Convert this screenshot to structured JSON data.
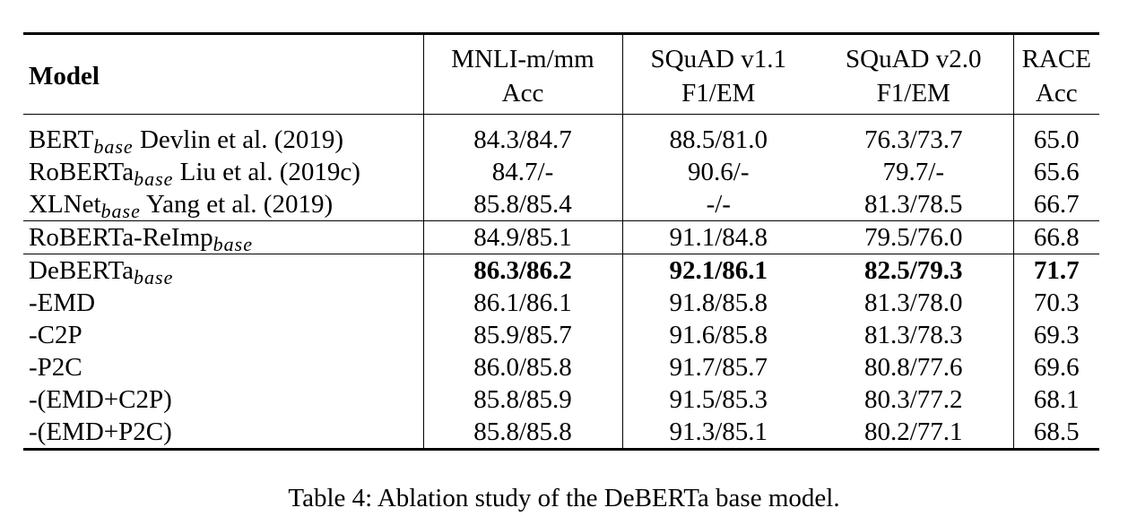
{
  "table": {
    "header": {
      "model": "Model",
      "columns": [
        {
          "line1": "MNLI-m/mm",
          "line2": "Acc"
        },
        {
          "line1": "SQuAD v1.1",
          "line2": "F1/EM"
        },
        {
          "line1": "SQuAD v2.0",
          "line2": "F1/EM"
        },
        {
          "line1": "RACE",
          "line2": "Acc"
        }
      ]
    },
    "rows": [
      {
        "name": "BERT",
        "sub": "base",
        "suffix": " Devlin et al. (2019)",
        "values": [
          "84.3/84.7",
          "88.5/81.0",
          "76.3/73.7",
          "65.0"
        ]
      },
      {
        "name": "RoBERTa",
        "sub": "base",
        "suffix": " Liu et al. (2019c)",
        "values": [
          "84.7/-",
          "90.6/-",
          "79.7/-",
          "65.6"
        ]
      },
      {
        "name": "XLNet",
        "sub": "base",
        "suffix": " Yang et al. (2019)",
        "values": [
          "85.8/85.4",
          "-/-",
          "81.3/78.5",
          "66.7"
        ]
      },
      {
        "name": "RoBERTa-ReImp",
        "sub": "base",
        "suffix": "",
        "values": [
          "84.9/85.1",
          "91.1/84.8",
          "79.5/76.0",
          "66.8"
        ]
      },
      {
        "name": "DeBERTa",
        "sub": "base",
        "suffix": "",
        "values": [
          "86.3/86.2",
          "92.1/86.1",
          "82.5/79.3",
          "71.7"
        ]
      },
      {
        "name": "-EMD",
        "sub": "",
        "suffix": "",
        "values": [
          "86.1/86.1",
          "91.8/85.8",
          "81.3/78.0",
          "70.3"
        ]
      },
      {
        "name": "-C2P",
        "sub": "",
        "suffix": "",
        "values": [
          "85.9/85.7",
          "91.6/85.8",
          "81.3/78.3",
          "69.3"
        ]
      },
      {
        "name": "-P2C",
        "sub": "",
        "suffix": "",
        "values": [
          "86.0/85.8",
          "91.7/85.7",
          "80.8/77.6",
          "69.6"
        ]
      },
      {
        "name": "-(EMD+C2P)",
        "sub": "",
        "suffix": "",
        "values": [
          "85.8/85.9",
          "91.5/85.3",
          "80.3/77.2",
          "68.1"
        ]
      },
      {
        "name": "-(EMD+P2C)",
        "sub": "",
        "suffix": "",
        "values": [
          "85.8/85.8",
          "91.3/85.1",
          "80.2/77.1",
          "68.5"
        ]
      }
    ]
  },
  "caption": "Table 4: Ablation study of the DeBERTa base model."
}
